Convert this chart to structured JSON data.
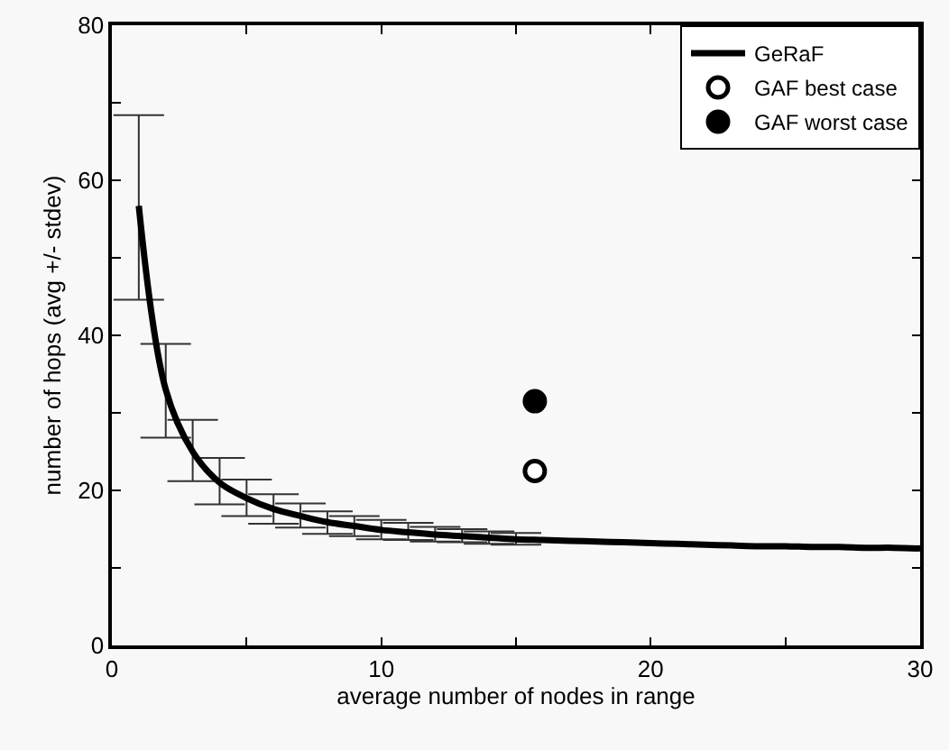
{
  "chart_data": {
    "type": "line",
    "xlabel": "average number of nodes in range",
    "ylabel": "number of hops (avg +/- stdev)",
    "xlim": [
      0,
      30
    ],
    "xticks": [
      0,
      {
        "value": 5,
        "label": null
      },
      10,
      {
        "value": 15,
        "label": null
      },
      20,
      {
        "value": 25,
        "label": null
      },
      30
    ],
    "ylim": [
      0,
      80
    ],
    "yticks": [
      0,
      {
        "value": 10,
        "label": null
      },
      20,
      {
        "value": 30,
        "label": null
      },
      40,
      {
        "value": 50,
        "label": null
      },
      60,
      {
        "value": 70,
        "label": null
      },
      80
    ],
    "grid": false,
    "legend": "top right",
    "series": [
      {
        "name": "GeRaF",
        "color": "#000000",
        "marker": "none",
        "line_style": "solid",
        "x": [
          1,
          2,
          3,
          4,
          5,
          6,
          7,
          8,
          9,
          10,
          11,
          12,
          13,
          14,
          15,
          16,
          17,
          18,
          19,
          20,
          21,
          22,
          23,
          24,
          25,
          26,
          27,
          28,
          29,
          30
        ],
        "values": [
          56.7,
          33,
          25,
          21,
          19,
          17.6,
          16.7,
          15.9,
          15.4,
          14.9,
          14.6,
          14.3,
          14.1,
          13.9,
          13.7,
          13.6,
          13.5,
          13.4,
          13.3,
          13.2,
          13.1,
          13,
          12.9,
          12.8,
          12.8,
          12.7,
          12.7,
          12.6,
          12.6,
          12.5
        ],
        "errors": [
          [
            44.6,
            68.4
          ],
          [
            26.8,
            38.9
          ],
          [
            21.2,
            29.1
          ],
          [
            18.2,
            24.2
          ],
          [
            16.7,
            21.4
          ],
          [
            15.7,
            19.5
          ],
          [
            15.2,
            18.3
          ],
          [
            14.4,
            17.3
          ],
          [
            14.1,
            16.7
          ],
          [
            13.7,
            16.2
          ],
          [
            13.6,
            15.8
          ],
          [
            13.4,
            15.3
          ],
          [
            13.3,
            15
          ],
          [
            13.1,
            14.7
          ],
          [
            13,
            14.5
          ],
          null,
          null,
          null,
          null,
          null,
          null,
          null,
          null,
          null,
          null,
          null,
          null,
          null,
          null,
          null
        ]
      },
      {
        "name": "GAF best case",
        "type": "scatter",
        "color": "#ffffff",
        "marker": "circle",
        "x": [
          15.7
        ],
        "values": [
          22.5
        ]
      },
      {
        "name": "GAF worst case",
        "type": "scatter",
        "color": "#000000",
        "marker": "circle",
        "x": [
          15.7
        ],
        "values": [
          31.5
        ]
      }
    ]
  }
}
